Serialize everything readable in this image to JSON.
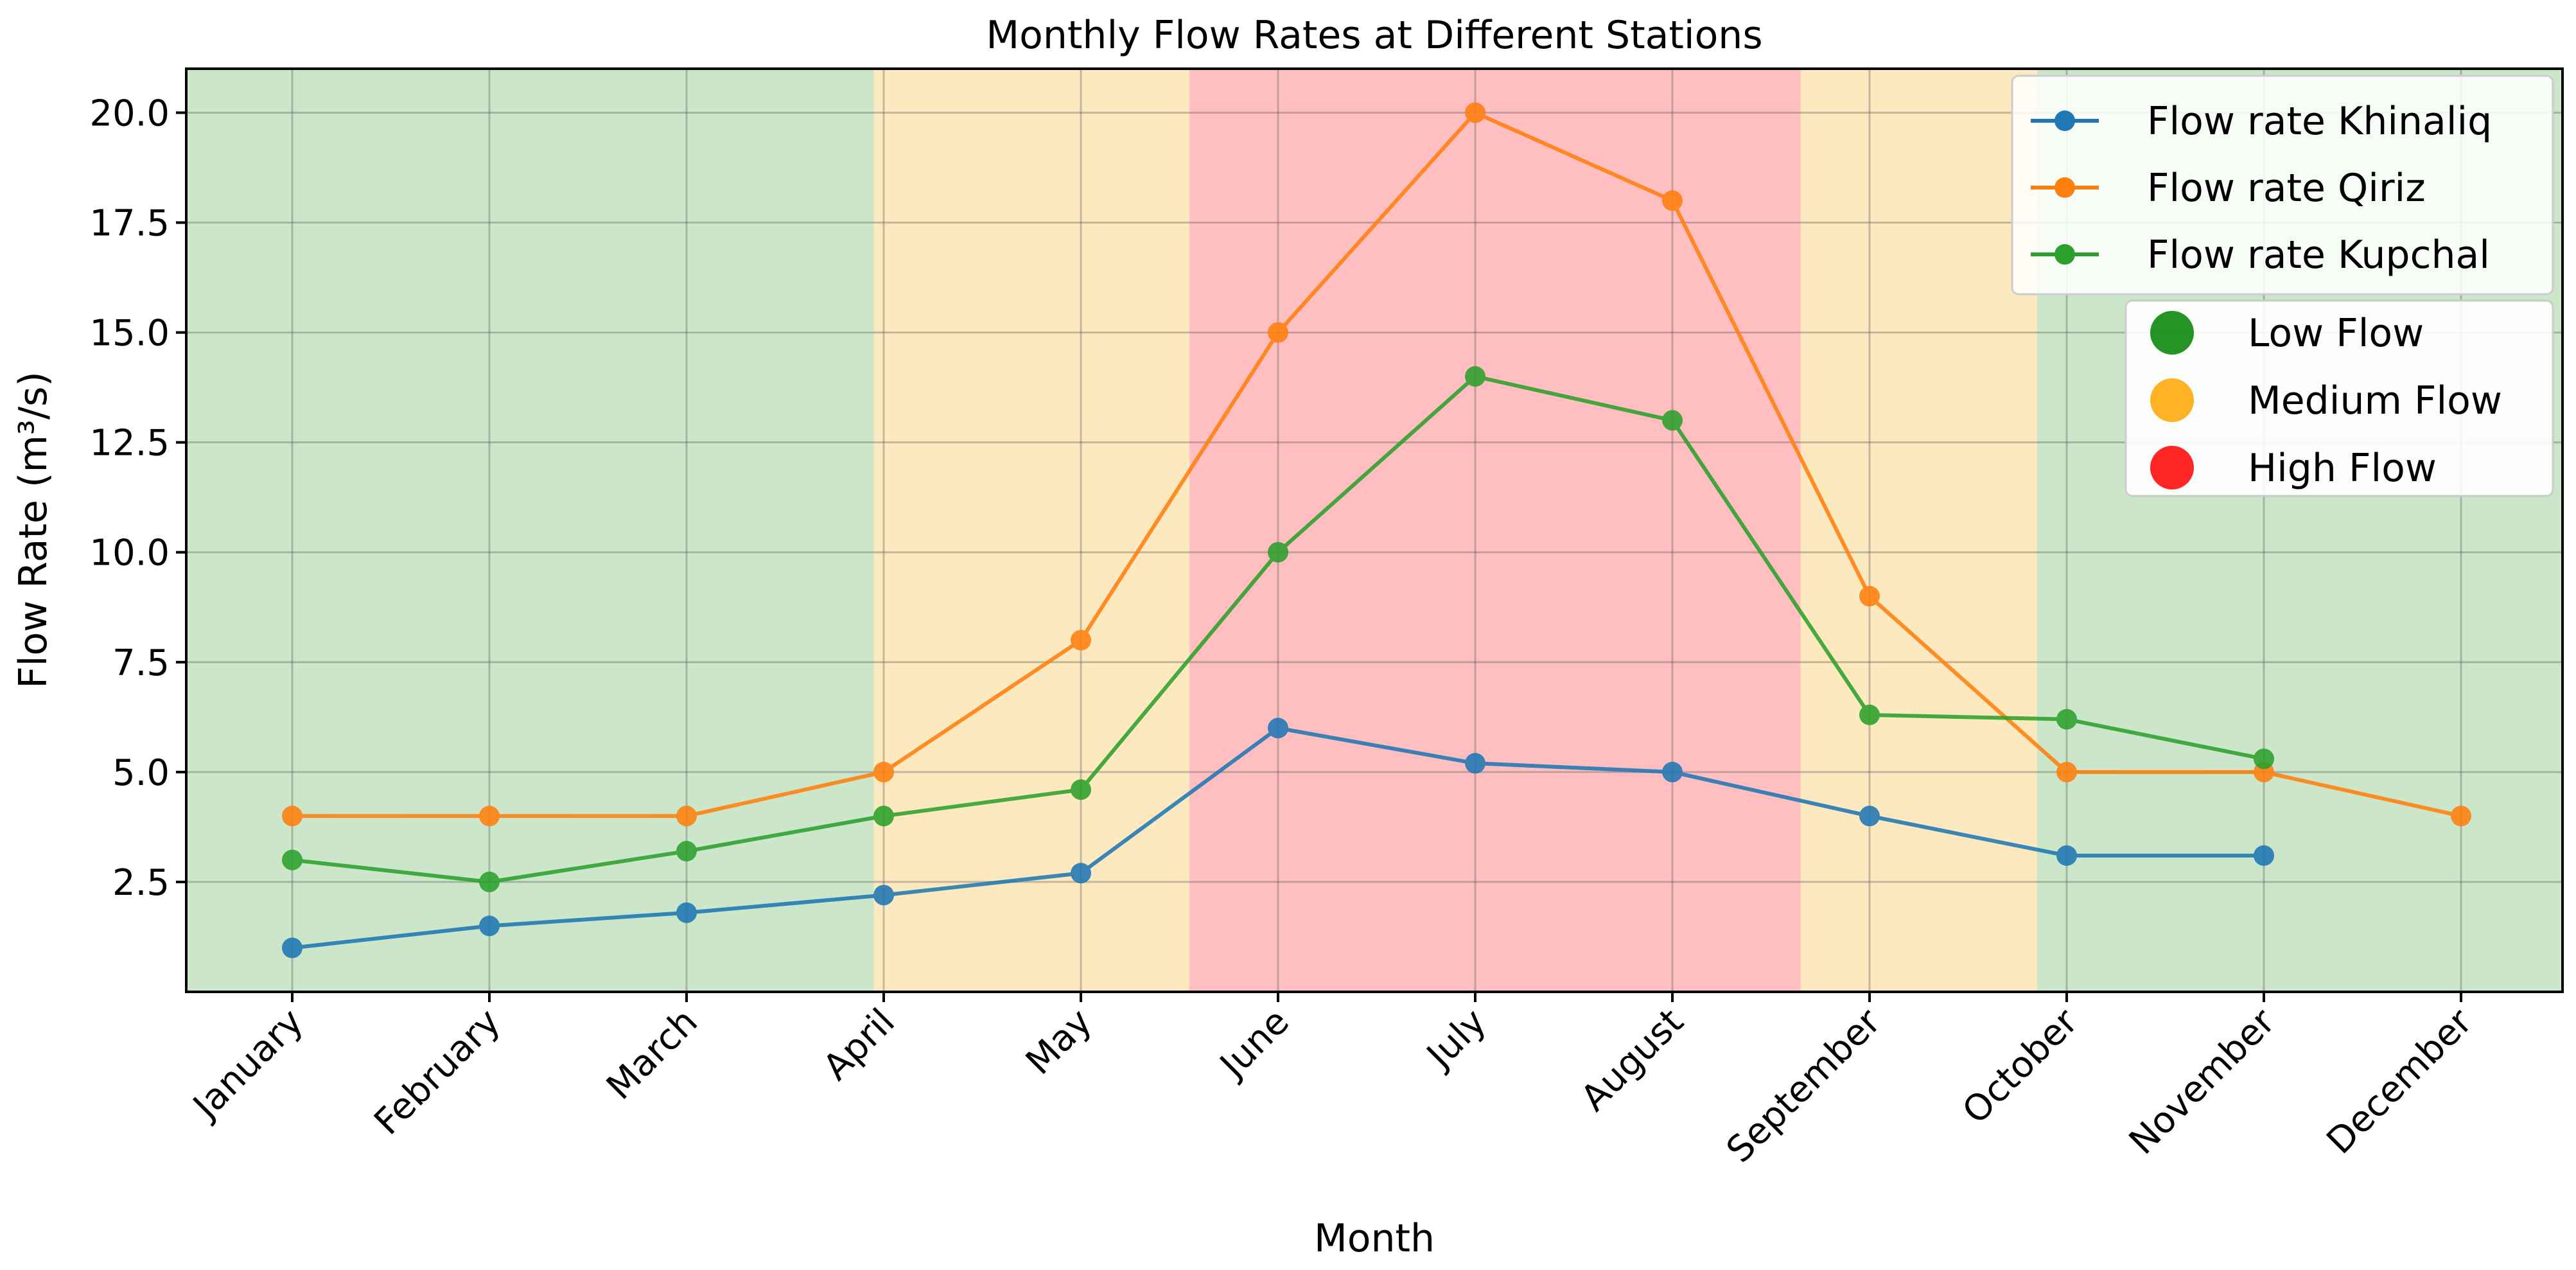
{
  "chart_data": {
    "type": "line",
    "title": "Monthly Flow Rates at Different Stations",
    "xlabel": "Month",
    "ylabel": "Flow Rate (m³/s)",
    "ylim": [
      0,
      21
    ],
    "yticks": [
      "2.5",
      "5.0",
      "7.5",
      "10.0",
      "12.5",
      "15.0",
      "17.5",
      "20.0"
    ],
    "grid": true,
    "legend_position": "top-right",
    "categories": [
      "January",
      "February",
      "March",
      "April",
      "May",
      "June",
      "July",
      "August",
      "September",
      "October",
      "November",
      "December"
    ],
    "series": [
      {
        "name": "Flow rate Khinaliq",
        "color": "#1f77b4",
        "values": [
          1.0,
          1.5,
          1.8,
          2.2,
          2.7,
          6.0,
          5.2,
          5.0,
          4.0,
          3.1,
          3.1,
          null
        ]
      },
      {
        "name": "Flow rate Qiriz",
        "color": "#ff7f0e",
        "values": [
          4.0,
          4.0,
          4.0,
          5.0,
          8.0,
          15.0,
          20.0,
          18.0,
          9.0,
          5.0,
          5.0,
          4.0
        ]
      },
      {
        "name": "Flow rate Kupchal",
        "color": "#2ca02c",
        "values": [
          3.0,
          2.5,
          3.2,
          4.0,
          4.6,
          10.0,
          14.0,
          13.0,
          6.3,
          6.2,
          5.3,
          null
        ]
      }
    ],
    "flow_levels": [
      {
        "label": "Low Flow",
        "color": "#008000",
        "band_color": "#cbe6c9"
      },
      {
        "label": "Medium Flow",
        "color": "#ffa500",
        "band_color": "#fde9bf"
      },
      {
        "label": "High Flow",
        "color": "#ff0000",
        "band_color": "#ffbfc1"
      }
    ],
    "background_bands": [
      {
        "level": "Low Flow",
        "from_month": -0.55,
        "to_month": 2.95
      },
      {
        "level": "Medium Flow",
        "from_month": 2.95,
        "to_month": 4.55
      },
      {
        "level": "High Flow",
        "from_month": 4.55,
        "to_month": 7.65
      },
      {
        "level": "Medium Flow",
        "from_month": 7.65,
        "to_month": 8.85
      },
      {
        "level": "Low Flow",
        "from_month": 8.85,
        "to_month": 11.55
      }
    ]
  }
}
